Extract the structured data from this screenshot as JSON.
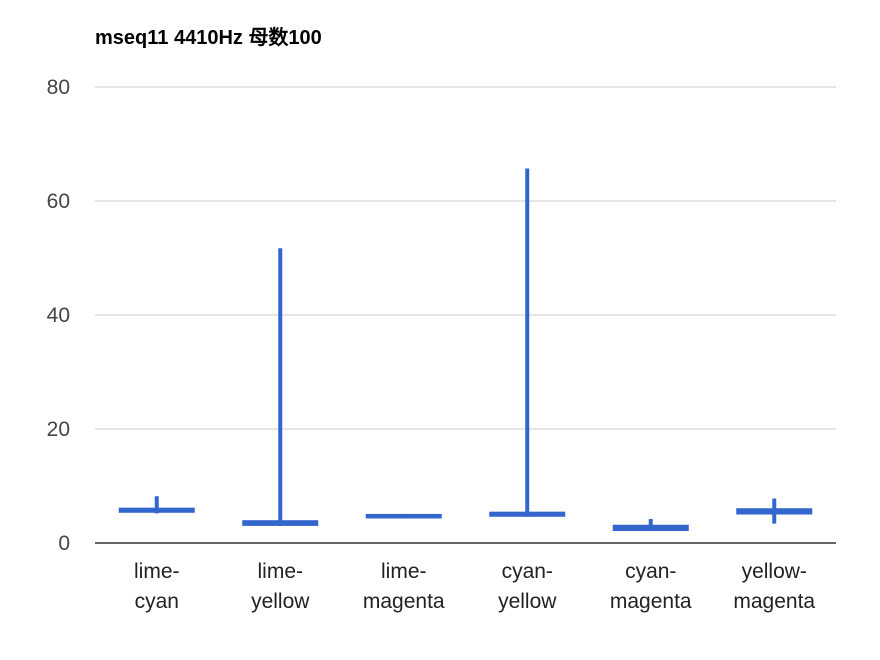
{
  "chart_data": {
    "type": "candlestick",
    "title": "mseq11 4410Hz 母数100",
    "xlabel": "",
    "ylabel": "",
    "ylim": [
      0,
      80
    ],
    "yticks": [
      0,
      20,
      40,
      60,
      80
    ],
    "grid": true,
    "legend": "none",
    "series_color": "#3366cc",
    "categories": [
      [
        "lime-",
        "cyan"
      ],
      [
        "lime-",
        "yellow"
      ],
      [
        "lime-",
        "magenta"
      ],
      [
        "cyan-",
        "yellow"
      ],
      [
        "cyan-",
        "magenta"
      ],
      [
        "yellow-",
        "magenta"
      ]
    ],
    "candles": [
      {
        "low": 5.2,
        "open": 5.3,
        "close": 6.2,
        "high": 8.2
      },
      {
        "low": 3.0,
        "open": 3.0,
        "close": 4.0,
        "high": 51.7
      },
      {
        "low": 4.3,
        "open": 4.3,
        "close": 5.1,
        "high": 5.1
      },
      {
        "low": 4.6,
        "open": 4.6,
        "close": 5.5,
        "high": 65.7
      },
      {
        "low": 2.1,
        "open": 2.1,
        "close": 3.2,
        "high": 4.2
      },
      {
        "low": 3.4,
        "open": 5.0,
        "close": 6.1,
        "high": 7.8
      }
    ]
  }
}
